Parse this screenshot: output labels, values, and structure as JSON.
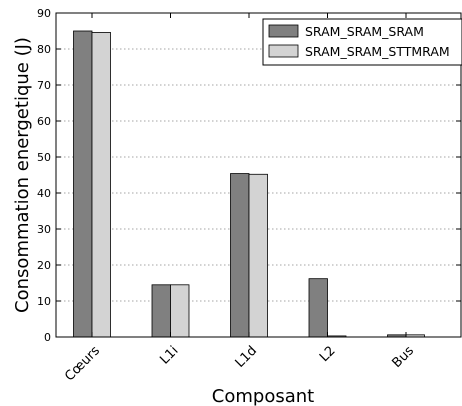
{
  "chart_data": {
    "type": "bar",
    "title": "",
    "xlabel": "Composant",
    "ylabel": "Consommation energetique (J)",
    "categories": [
      "Cœurs",
      "L1i",
      "L1d",
      "L2",
      "Bus"
    ],
    "series": [
      {
        "name": "SRAM_SRAM_SRAM",
        "values": [
          85.0,
          14.5,
          45.4,
          16.2,
          0.6
        ],
        "color": "#808080"
      },
      {
        "name": "SRAM_SRAM_STTMRAM",
        "values": [
          84.6,
          14.5,
          45.2,
          0.3,
          0.6
        ],
        "color": "#d3d3d3"
      }
    ],
    "ylim": [
      0,
      90
    ],
    "yticks": [
      "0",
      "10",
      "20",
      "30",
      "40",
      "50",
      "60",
      "70",
      "80",
      "90"
    ],
    "grid": "horizontal-dotted",
    "legend_position": "top-right"
  }
}
